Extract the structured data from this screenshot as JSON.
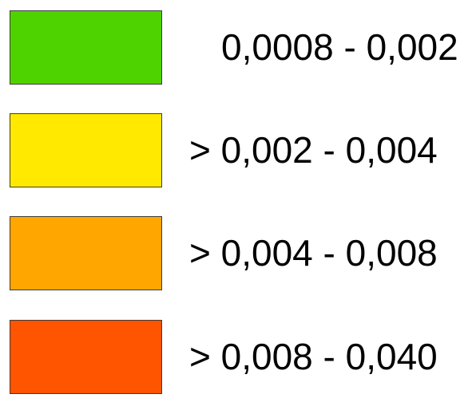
{
  "legend": {
    "items": [
      {
        "label": "0,0008 - 0,002",
        "color": "#4fd300"
      },
      {
        "label": "> 0,002 - 0,004",
        "color": "#ffe900"
      },
      {
        "label": "> 0,004 - 0,008",
        "color": "#ffa600"
      },
      {
        "label": "> 0,008 - 0,040",
        "color": "#ff5400"
      }
    ]
  }
}
